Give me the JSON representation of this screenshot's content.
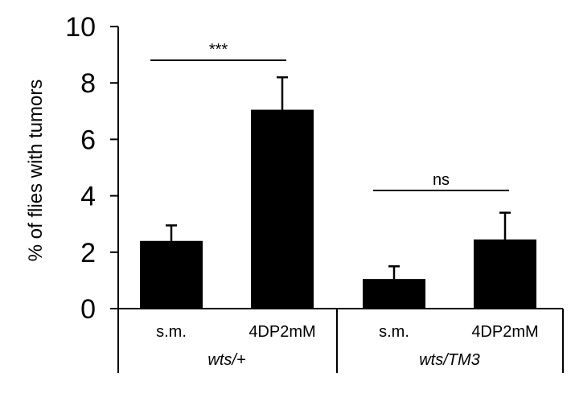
{
  "chart_data": {
    "type": "bar",
    "title": "",
    "ylabel": "% of flies with tumors",
    "xlabel": "",
    "ylim": [
      0,
      10
    ],
    "yticks": [
      "0",
      "2",
      "4",
      "6",
      "8",
      "10"
    ],
    "grid": false,
    "categories": [
      "s.m.",
      "4DP2mM",
      "s.m.",
      "4DP2mM"
    ],
    "values": [
      2.4,
      7.05,
      1.05,
      2.45
    ],
    "errors": [
      0.55,
      1.15,
      0.45,
      0.95
    ],
    "groups": [
      {
        "label": "wts/+",
        "categories": [
          0,
          1
        ]
      },
      {
        "label": "wts/TM3",
        "categories": [
          2,
          3
        ]
      }
    ],
    "annotations": [
      {
        "text": "***",
        "from": 0,
        "to": 1
      },
      {
        "text": "ns",
        "from": 2,
        "to": 3
      }
    ],
    "colors": {
      "bar": "#000000"
    }
  }
}
